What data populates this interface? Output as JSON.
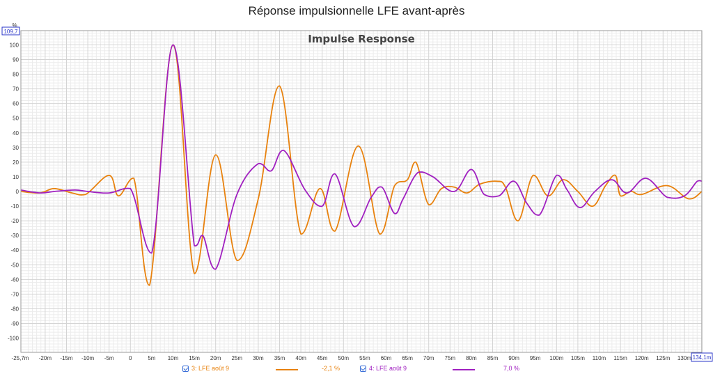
{
  "window": {
    "title": "Réponse impulsionnelle LFE avant-après"
  },
  "chart_data": {
    "type": "line",
    "title": "Impulse Response",
    "ylabel": "%",
    "xlabel": "",
    "x_unit": "ms",
    "xlim": [
      -25.7,
      134.1
    ],
    "ylim": [
      -109.7,
      109.7
    ],
    "y_top_box": "109,7",
    "x_start_box": "-25,7m",
    "x_end_box": "134,1m",
    "x_ticks": [
      -20,
      -15,
      -10,
      -5,
      0,
      5,
      10,
      15,
      20,
      25,
      30,
      35,
      40,
      45,
      50,
      55,
      60,
      65,
      70,
      75,
      80,
      85,
      90,
      95,
      100,
      105,
      110,
      115,
      120,
      125,
      130
    ],
    "x_tick_labels": [
      "-20m",
      "-15m",
      "-10m",
      "-5m",
      "0",
      "5m",
      "10m",
      "15m",
      "20m",
      "25m",
      "30m",
      "35m",
      "40m",
      "45m",
      "50m",
      "55m",
      "60m",
      "65m",
      "70m",
      "75m",
      "80m",
      "85m",
      "90m",
      "95m",
      "100m",
      "105m",
      "110m",
      "115m",
      "120m",
      "125m",
      "130m"
    ],
    "y_ticks": [
      100,
      90,
      80,
      70,
      60,
      50,
      40,
      30,
      20,
      10,
      0,
      -10,
      -20,
      -30,
      -40,
      -50,
      -60,
      -70,
      -80,
      -90,
      -100
    ],
    "grid": true,
    "legend_position": "bottom",
    "series": [
      {
        "name": "3: LFE août 9",
        "color": "#e8820e",
        "readout": "-2,1 %",
        "checked": true,
        "x": [
          -25.7,
          -21.2,
          -17.9,
          -13.7,
          -10.5,
          -5,
          -2.8,
          0.8,
          4.5,
          10,
          15,
          20,
          25,
          30,
          35,
          40,
          44.5,
          48,
          53.5,
          58.5,
          62,
          65,
          67,
          70,
          73,
          76,
          79,
          82,
          86,
          88,
          91,
          94.5,
          98,
          101.5,
          105,
          108.5,
          111.5,
          113.8,
          115,
          117.5,
          120,
          126,
          131,
          134.1
        ],
        "y": [
          0,
          -1,
          2,
          -1,
          -2,
          11,
          -3,
          9,
          -64,
          100,
          -56,
          25,
          -47,
          -5,
          72,
          -29,
          2,
          -27,
          31,
          -29,
          4,
          8,
          20,
          -9,
          2,
          3,
          -1,
          5,
          7,
          3,
          -20,
          11,
          -3,
          8,
          0,
          -10,
          4,
          11,
          -3,
          0,
          -2,
          4,
          -5,
          0
        ]
      },
      {
        "name": "4: LFE août 9",
        "color": "#a020c0",
        "readout": "7,0 %",
        "checked": true,
        "x": [
          -25.7,
          -21.2,
          -17.9,
          -13,
          -10,
          -5,
          0,
          5,
          10,
          15,
          17,
          20,
          25,
          30,
          33,
          36,
          41,
          45,
          48,
          52.5,
          56.5,
          59,
          62,
          64,
          67.5,
          71,
          76,
          80,
          83,
          86.5,
          90,
          93,
          96,
          100,
          102.5,
          105.5,
          109,
          113,
          116.5,
          121,
          126,
          130,
          133,
          134.1
        ],
        "y": [
          1,
          -1,
          0,
          1,
          0,
          -1,
          2,
          -42,
          100,
          -37,
          -30,
          -53,
          -2,
          19,
          14,
          28,
          1,
          -10,
          12,
          -24,
          -4,
          3,
          -15,
          -5,
          13,
          10,
          0,
          15,
          -2,
          -3,
          7,
          -8,
          -16,
          11,
          1,
          -11,
          0,
          8,
          -1,
          9,
          -4,
          -3,
          7,
          7
        ]
      }
    ]
  }
}
